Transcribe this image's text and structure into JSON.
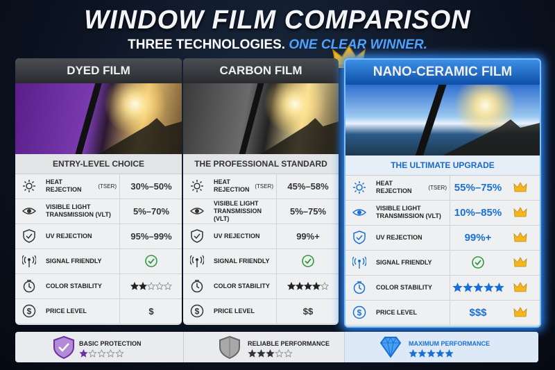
{
  "header": {
    "title": "WINDOW FILM COMPARISON",
    "subtitle": "THREE TECHNOLOGIES.",
    "subtitle_highlight": "ONE CLEAR WINNER."
  },
  "row_labels": [
    {
      "label": "HEAT REJECTION",
      "note": "(TSER)"
    },
    {
      "label": "VISIBLE LIGHT TRANSMISSION (VLT)"
    },
    {
      "label": "UV REJECTION"
    },
    {
      "label": "SIGNAL FRIENDLY"
    },
    {
      "label": "COLOR STABILITY"
    },
    {
      "label": "PRICE LEVEL"
    }
  ],
  "rating_max": 5,
  "columns": [
    {
      "name": "DYED FILM",
      "tagline": "ENTRY-LEVEL CHOICE",
      "heat_rejection": "30%–50%",
      "vlt": "5%–70%",
      "uv_rejection": "95%–99%",
      "color_stability": 2,
      "price": "$",
      "summary": {
        "label": "BASIC PROTECTION",
        "rating": 1
      }
    },
    {
      "name": "CARBON FILM",
      "tagline": "THE PROFESSIONAL STANDARD",
      "heat_rejection": "45%–58%",
      "vlt": "5%–75%",
      "uv_rejection": "99%+",
      "color_stability": 4,
      "price": "$$",
      "summary": {
        "label": "RELIABLE PERFORMANCE",
        "rating": 3
      }
    },
    {
      "name": "NANO-CERAMIC FILM",
      "tagline": "THE ULTIMATE UPGRADE",
      "heat_rejection": "55%–75%",
      "vlt": "10%–85%",
      "uv_rejection": "99%+",
      "color_stability": 5,
      "price": "$$$",
      "summary": {
        "label": "MAXIMUM PERFORMANCE",
        "rating": 5
      }
    }
  ]
}
